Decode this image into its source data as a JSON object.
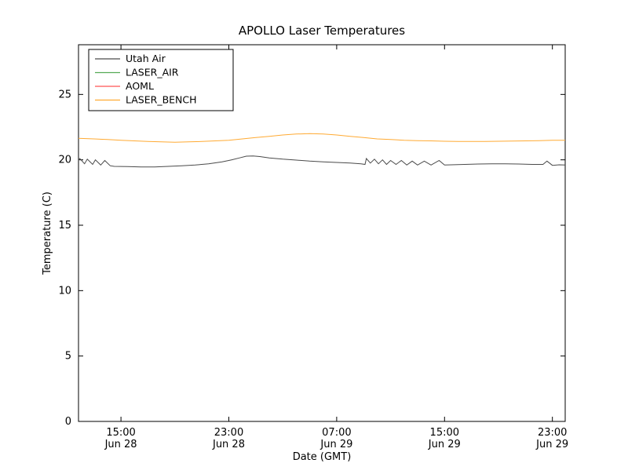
{
  "chart_data": {
    "type": "line",
    "title": "APOLLO Laser Temperatures",
    "xlabel": "Date (GMT)",
    "ylabel": "Temperature (C)",
    "grid": false,
    "legend_position": "upper left",
    "background": "#ffffff",
    "x_unit": "hours since Jun 28 00:00 GMT",
    "xlim": [
      11.85,
      47.95
    ],
    "ylim": [
      0,
      28.8
    ],
    "y_ticks": [
      0,
      5,
      10,
      15,
      20,
      25
    ],
    "x_ticks": [
      {
        "value": 15,
        "label": "15:00",
        "sublabel": "Jun 28"
      },
      {
        "value": 23,
        "label": "23:00",
        "sublabel": "Jun 28"
      },
      {
        "value": 31,
        "label": "07:00",
        "sublabel": "Jun 29"
      },
      {
        "value": 39,
        "label": "15:00",
        "sublabel": "Jun 29"
      },
      {
        "value": 47,
        "label": "23:00",
        "sublabel": "Jun 29"
      }
    ],
    "series": [
      {
        "name": "Utah Air",
        "color": "#4a4a4a",
        "points": [
          [
            11.85,
            19.95
          ],
          [
            11.95,
            20.1
          ],
          [
            12.3,
            19.7
          ],
          [
            12.5,
            20.05
          ],
          [
            12.9,
            19.65
          ],
          [
            13.1,
            20.0
          ],
          [
            13.5,
            19.6
          ],
          [
            13.8,
            19.95
          ],
          [
            14.2,
            19.55
          ],
          [
            14.5,
            19.5
          ],
          [
            15.5,
            19.48
          ],
          [
            16.5,
            19.45
          ],
          [
            17.5,
            19.45
          ],
          [
            18.5,
            19.5
          ],
          [
            19.5,
            19.55
          ],
          [
            20.5,
            19.6
          ],
          [
            21.5,
            19.7
          ],
          [
            22.5,
            19.85
          ],
          [
            23.2,
            20.0
          ],
          [
            23.8,
            20.15
          ],
          [
            24.3,
            20.28
          ],
          [
            24.8,
            20.3
          ],
          [
            25.3,
            20.25
          ],
          [
            26.0,
            20.15
          ],
          [
            27.0,
            20.05
          ],
          [
            28.0,
            19.98
          ],
          [
            29.0,
            19.9
          ],
          [
            30.0,
            19.85
          ],
          [
            31.0,
            19.8
          ],
          [
            32.0,
            19.75
          ],
          [
            32.8,
            19.7
          ],
          [
            33.1,
            19.65
          ],
          [
            33.2,
            20.1
          ],
          [
            33.5,
            19.75
          ],
          [
            33.8,
            20.05
          ],
          [
            34.1,
            19.7
          ],
          [
            34.4,
            20.0
          ],
          [
            34.7,
            19.65
          ],
          [
            35.0,
            19.95
          ],
          [
            35.4,
            19.65
          ],
          [
            35.8,
            19.95
          ],
          [
            36.2,
            19.6
          ],
          [
            36.6,
            19.9
          ],
          [
            37.0,
            19.6
          ],
          [
            37.5,
            19.9
          ],
          [
            38.0,
            19.6
          ],
          [
            38.6,
            19.95
          ],
          [
            39.0,
            19.6
          ],
          [
            39.5,
            19.62
          ],
          [
            40.5,
            19.65
          ],
          [
            41.5,
            19.68
          ],
          [
            42.5,
            19.7
          ],
          [
            43.5,
            19.7
          ],
          [
            44.5,
            19.68
          ],
          [
            45.5,
            19.65
          ],
          [
            46.3,
            19.65
          ],
          [
            46.6,
            19.9
          ],
          [
            47.0,
            19.58
          ],
          [
            47.5,
            19.62
          ],
          [
            47.95,
            19.6
          ]
        ]
      },
      {
        "name": "LASER_AIR",
        "color": "#55aa55",
        "points": []
      },
      {
        "name": "AOML",
        "color": "#ff5555",
        "points": []
      },
      {
        "name": "LASER_BENCH",
        "color": "#ffaa33",
        "points": [
          [
            11.85,
            21.65
          ],
          [
            13.0,
            21.6
          ],
          [
            14.0,
            21.55
          ],
          [
            15.0,
            21.5
          ],
          [
            16.0,
            21.45
          ],
          [
            17.0,
            21.4
          ],
          [
            18.0,
            21.37
          ],
          [
            19.0,
            21.35
          ],
          [
            20.0,
            21.37
          ],
          [
            21.0,
            21.4
          ],
          [
            22.0,
            21.45
          ],
          [
            23.0,
            21.5
          ],
          [
            24.0,
            21.6
          ],
          [
            25.0,
            21.7
          ],
          [
            26.0,
            21.8
          ],
          [
            27.0,
            21.9
          ],
          [
            28.0,
            21.97
          ],
          [
            29.0,
            22.0
          ],
          [
            30.0,
            21.98
          ],
          [
            31.0,
            21.9
          ],
          [
            32.0,
            21.8
          ],
          [
            33.0,
            21.7
          ],
          [
            34.0,
            21.6
          ],
          [
            35.0,
            21.55
          ],
          [
            36.0,
            21.5
          ],
          [
            37.0,
            21.47
          ],
          [
            38.0,
            21.45
          ],
          [
            39.0,
            21.42
          ],
          [
            40.0,
            21.4
          ],
          [
            41.0,
            21.4
          ],
          [
            42.0,
            21.4
          ],
          [
            43.0,
            21.42
          ],
          [
            44.0,
            21.43
          ],
          [
            45.0,
            21.45
          ],
          [
            46.0,
            21.47
          ],
          [
            47.0,
            21.5
          ],
          [
            47.95,
            21.5
          ]
        ]
      }
    ]
  }
}
